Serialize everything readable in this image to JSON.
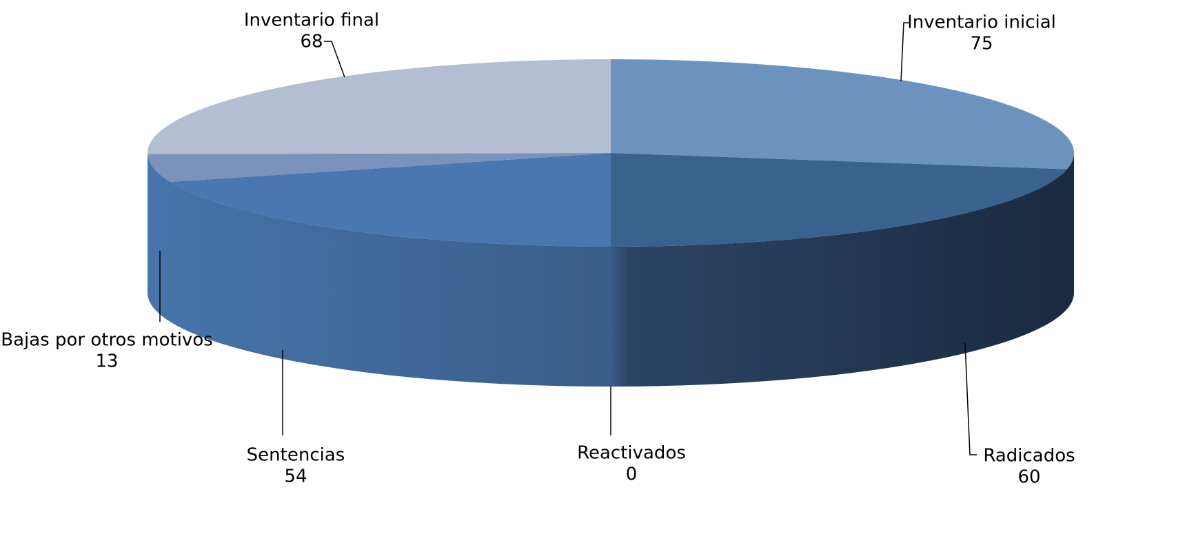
{
  "chart_data": {
    "type": "pie",
    "style": "3d",
    "title": "",
    "legend": "none",
    "categories": [
      "Inventario inicial",
      "Radicados",
      "Reactivados",
      "Sentencias",
      "Bajas por otros motivos",
      "Inventario final"
    ],
    "values": [
      75,
      60,
      0,
      54,
      13,
      68
    ],
    "colors": [
      "#6C93BE",
      "#3A628E",
      "#3F5F8A",
      "#4A77B0",
      "#7B93BC",
      "#B4BED3"
    ],
    "side_colors": {
      "left": "#4774AB",
      "right": "#1A2A3F"
    }
  }
}
